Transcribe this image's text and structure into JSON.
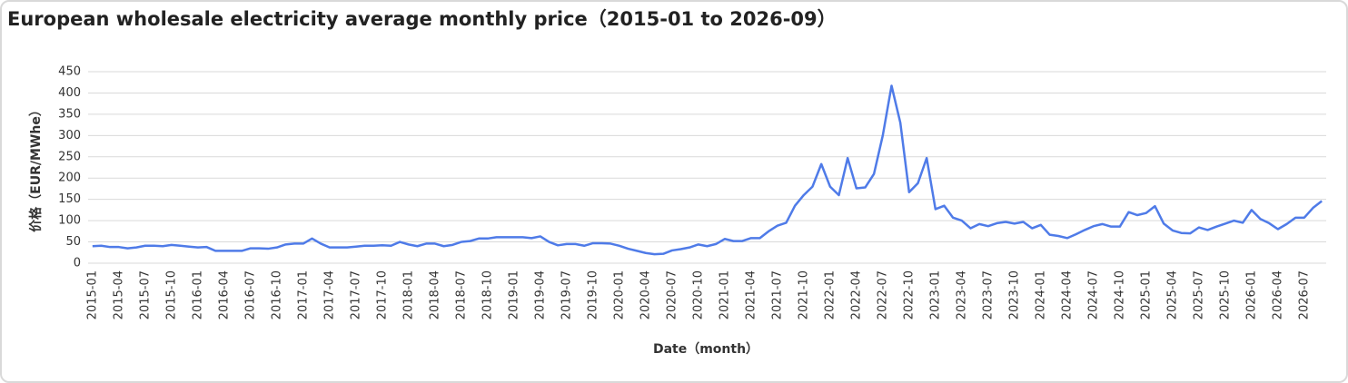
{
  "chart_data": {
    "type": "line",
    "title": "European wholesale electricity average monthly price（2015-01 to 2026-09）",
    "x_label": "Date（month）",
    "y_label": "价格（EUR/MWhe）",
    "categories": [
      "2015-01",
      null,
      null,
      "2015-04",
      null,
      null,
      "2015-07",
      null,
      null,
      "2015-10",
      null,
      null,
      "2016-01",
      null,
      null,
      "2016-04",
      null,
      null,
      "2016-07",
      null,
      null,
      "2016-10",
      null,
      null,
      "2017-01",
      null,
      null,
      "2017-04",
      null,
      null,
      "2017-07",
      null,
      null,
      "2017-10",
      null,
      null,
      "2018-01",
      null,
      null,
      "2018-04",
      null,
      null,
      "2018-07",
      null,
      null,
      "2018-10",
      null,
      null,
      "2019-01",
      null,
      null,
      "2019-04",
      null,
      null,
      "2019-07",
      null,
      null,
      "2019-10",
      null,
      null,
      "2020-01",
      null,
      null,
      "2020-04",
      null,
      null,
      "2020-07",
      null,
      null,
      "2020-10",
      null,
      null,
      "2021-01",
      null,
      null,
      "2021-04",
      null,
      null,
      "2021-07",
      null,
      null,
      "2021-10",
      null,
      null,
      "2022-01",
      null,
      null,
      "2022-04",
      null,
      null,
      "2022-07",
      null,
      null,
      "2022-10",
      null,
      null,
      "2023-01",
      null,
      null,
      "2023-04",
      null,
      null,
      "2023-07",
      null,
      null,
      "2023-10",
      null,
      null,
      "2024-01",
      null,
      null,
      "2024-04",
      null,
      null,
      "2024-07",
      null,
      null,
      "2024-10",
      null,
      null,
      "2025-01",
      null,
      null,
      "2025-04",
      null,
      null,
      "2025-07",
      null,
      null,
      "2025-10",
      null,
      null,
      "2026-01",
      null,
      null,
      "2026-04",
      null,
      null,
      "2026-07",
      null,
      null
    ],
    "values": [
      40,
      41,
      38,
      38,
      35,
      37,
      41,
      41,
      40,
      43,
      41,
      39,
      37,
      38,
      29,
      29,
      29,
      29,
      35,
      35,
      34,
      37,
      44,
      46,
      46,
      58,
      46,
      37,
      37,
      37,
      39,
      41,
      41,
      42,
      41,
      50,
      44,
      40,
      46,
      46,
      40,
      43,
      50,
      52,
      58,
      58,
      61,
      61,
      61,
      61,
      59,
      63,
      50,
      42,
      45,
      45,
      41,
      47,
      47,
      46,
      41,
      34,
      29,
      24,
      21,
      22,
      30,
      33,
      37,
      44,
      40,
      45,
      57,
      52,
      52,
      59,
      59,
      75,
      88,
      95,
      135,
      160,
      180,
      233,
      180,
      160,
      247,
      176,
      178,
      210,
      300,
      417,
      330,
      167,
      188,
      247,
      127,
      135,
      107,
      100,
      82,
      92,
      87,
      94,
      97,
      93,
      97,
      82,
      90,
      67,
      64,
      59,
      68,
      78,
      87,
      92,
      86,
      86,
      120,
      113,
      118,
      134,
      93,
      77,
      71,
      70,
      84,
      78,
      86,
      93,
      100,
      95,
      125,
      104,
      94,
      80,
      92,
      107,
      107,
      130,
      146
    ],
    "color": "#4f7be8",
    "ylim": [
      0,
      450
    ],
    "yticks": [
      0,
      50,
      100,
      150,
      200,
      250,
      300,
      350,
      400,
      450
    ],
    "grid": true
  }
}
